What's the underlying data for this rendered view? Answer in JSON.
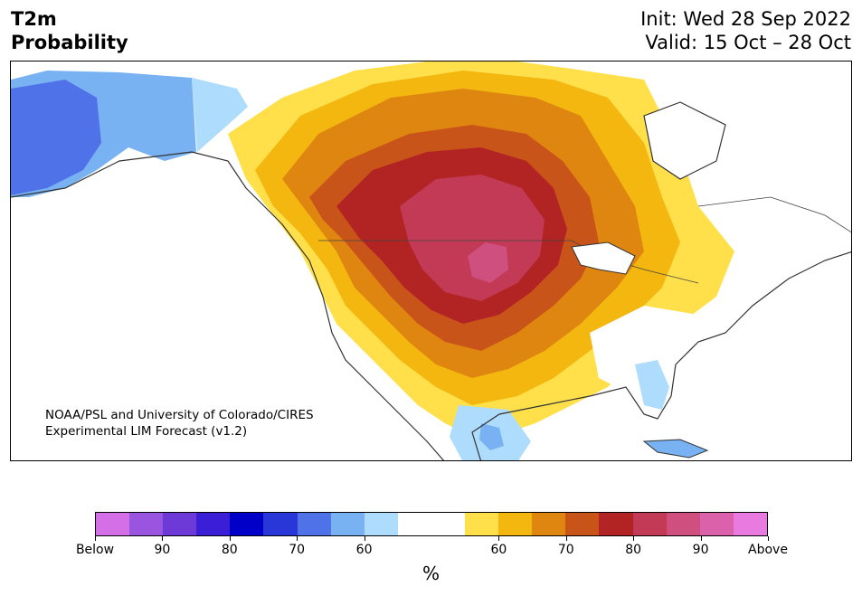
{
  "header": {
    "title_line1": "T2m",
    "title_line2": "Probability",
    "init": "Init: Wed 28 Sep 2022",
    "valid": "Valid: 15 Oct – 28 Oct"
  },
  "map": {
    "credit_line1": "NOAA/PSL and University of Colorado/CIRES",
    "credit_line2": "Experimental LIM Forecast (v1.2)"
  },
  "colorbar": {
    "unit": "%",
    "tick_labels": [
      "Below",
      "90",
      "80",
      "70",
      "60",
      "60",
      "70",
      "80",
      "90",
      "Above"
    ],
    "colors": [
      "#d46fe8",
      "#9a55e0",
      "#6d3ad8",
      "#3a1fd6",
      "#0000c8",
      "#2a37d8",
      "#4f72e8",
      "#78b2f2",
      "#aedcfc",
      "#ffffff",
      "#ffffff",
      "#ffe04b",
      "#f3b70f",
      "#df8610",
      "#c95419",
      "#b22424",
      "#c23a55",
      "#cf4f7e",
      "#da61aa",
      "#e87ae0"
    ]
  }
}
